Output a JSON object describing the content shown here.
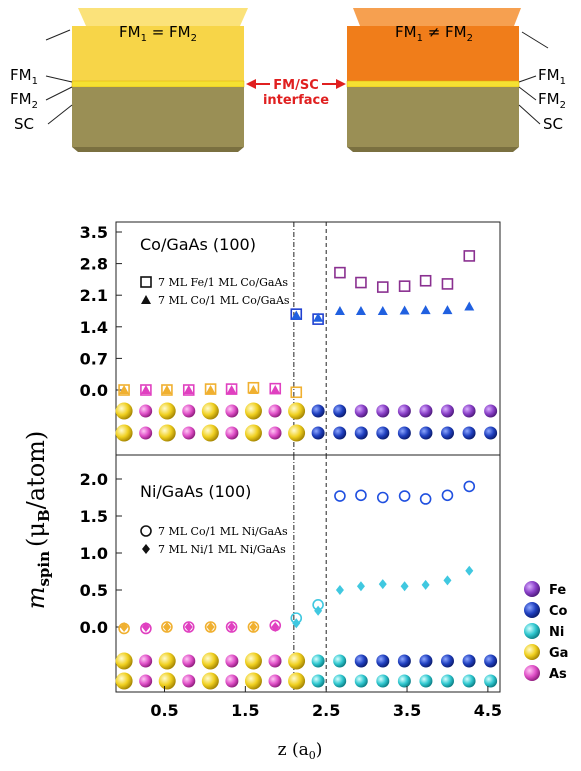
{
  "diagram": {
    "left_top_label": "FM",
    "left_top_sub1": "1",
    "left_top_eq": " = FM",
    "left_top_sub2": "2",
    "right_top_label": "FM",
    "right_top_sub1": "1",
    "right_top_eq": " ≠ FM",
    "right_top_sub2": "2",
    "layer_fm1": "FM",
    "layer_fm1_sub": "1",
    "layer_fm2": "FM",
    "layer_fm2_sub": "2",
    "layer_sc": "SC",
    "interface_line1": "FM/SC",
    "interface_line2": "interface",
    "colors": {
      "left_fm": "#f7d548",
      "right_fm": "#f07d1a",
      "fm2_layer": "#f5e132",
      "sc": "#9a8f55",
      "interface_label": "#e02020"
    }
  },
  "chart_data": [
    {
      "type": "scatter",
      "title": "Co/GaAs (100)",
      "ylim": [
        -0.95,
        3.5
      ],
      "yticks": [
        "3.5",
        "2.8",
        "2.1",
        "1.4",
        "0.7",
        "0.0"
      ],
      "ytick_values": [
        3.5,
        2.8,
        2.1,
        1.4,
        0.7,
        0.0
      ],
      "series": [
        {
          "name": "7 ML Fe/1 ML Co/GaAs",
          "marker": "square-open",
          "points": [
            {
              "x": 0.0,
              "y": 0.0,
              "color": "#f0b030"
            },
            {
              "x": 0.27,
              "y": 0.0,
              "color": "#e040c0"
            },
            {
              "x": 0.53,
              "y": 0.0,
              "color": "#f0b030"
            },
            {
              "x": 0.8,
              "y": 0.0,
              "color": "#e040c0"
            },
            {
              "x": 1.07,
              "y": 0.02,
              "color": "#f0b030"
            },
            {
              "x": 1.33,
              "y": 0.02,
              "color": "#e040c0"
            },
            {
              "x": 1.6,
              "y": 0.05,
              "color": "#f0b030"
            },
            {
              "x": 1.87,
              "y": 0.03,
              "color": "#e040c0"
            },
            {
              "x": 2.13,
              "y": -0.05,
              "color": "#f0b030"
            },
            {
              "x": 2.13,
              "y": 1.68,
              "color": "#2040d0"
            },
            {
              "x": 2.4,
              "y": 1.57,
              "color": "#2040d0"
            },
            {
              "x": 2.67,
              "y": 2.6,
              "color": "#8a3090"
            },
            {
              "x": 2.93,
              "y": 2.38,
              "color": "#8a3090"
            },
            {
              "x": 3.2,
              "y": 2.28,
              "color": "#8a3090"
            },
            {
              "x": 3.47,
              "y": 2.3,
              "color": "#8a3090"
            },
            {
              "x": 3.73,
              "y": 2.42,
              "color": "#8a3090"
            },
            {
              "x": 4.0,
              "y": 2.35,
              "color": "#8a3090"
            },
            {
              "x": 4.27,
              "y": 2.97,
              "color": "#8a3090"
            }
          ]
        },
        {
          "name": "7 ML Co/1 ML Co/GaAs",
          "marker": "triangle",
          "points": [
            {
              "x": 0.0,
              "y": 0.0,
              "color": "#f0b030"
            },
            {
              "x": 0.27,
              "y": 0.0,
              "color": "#e040c0"
            },
            {
              "x": 0.53,
              "y": 0.0,
              "color": "#f0b030"
            },
            {
              "x": 0.8,
              "y": 0.0,
              "color": "#e040c0"
            },
            {
              "x": 1.07,
              "y": 0.0,
              "color": "#f0b030"
            },
            {
              "x": 1.33,
              "y": 0.0,
              "color": "#e040c0"
            },
            {
              "x": 1.6,
              "y": 0.0,
              "color": "#f0b030"
            },
            {
              "x": 1.87,
              "y": 0.0,
              "color": "#e040c0"
            },
            {
              "x": 2.13,
              "y": 1.65,
              "color": "#2060e0"
            },
            {
              "x": 2.4,
              "y": 1.6,
              "color": "#2060e0"
            },
            {
              "x": 2.67,
              "y": 1.75,
              "color": "#2060e0"
            },
            {
              "x": 2.93,
              "y": 1.75,
              "color": "#2060e0"
            },
            {
              "x": 3.2,
              "y": 1.75,
              "color": "#2060e0"
            },
            {
              "x": 3.47,
              "y": 1.76,
              "color": "#2060e0"
            },
            {
              "x": 3.73,
              "y": 1.77,
              "color": "#2060e0"
            },
            {
              "x": 4.0,
              "y": 1.77,
              "color": "#2060e0"
            },
            {
              "x": 4.27,
              "y": 1.85,
              "color": "#2060e0"
            }
          ]
        }
      ]
    },
    {
      "type": "scatter",
      "title": "Ni/GaAs (100)",
      "ylim": [
        -0.95,
        2.0
      ],
      "yticks": [
        "2.0",
        "1.5",
        "1.0",
        "0.5",
        "0.0"
      ],
      "ytick_values": [
        2.0,
        1.5,
        1.0,
        0.5,
        0.0
      ],
      "xticks": [
        "0.5",
        "1.5",
        "2.5",
        "3.5",
        "4.5"
      ],
      "xtick_values": [
        0.5,
        1.5,
        2.5,
        3.5,
        4.5
      ],
      "xlim": [
        -0.1,
        4.65
      ],
      "series": [
        {
          "name": "7 ML Co/1 ML Ni/GaAs",
          "marker": "circle-open",
          "points": [
            {
              "x": 0.0,
              "y": -0.02,
              "color": "#f0b030"
            },
            {
              "x": 0.27,
              "y": -0.02,
              "color": "#e040c0"
            },
            {
              "x": 0.53,
              "y": 0.0,
              "color": "#f0b030"
            },
            {
              "x": 0.8,
              "y": 0.0,
              "color": "#e040c0"
            },
            {
              "x": 1.07,
              "y": 0.0,
              "color": "#f0b030"
            },
            {
              "x": 1.33,
              "y": 0.0,
              "color": "#e040c0"
            },
            {
              "x": 1.6,
              "y": 0.0,
              "color": "#f0b030"
            },
            {
              "x": 1.87,
              "y": 0.02,
              "color": "#e040c0"
            },
            {
              "x": 2.13,
              "y": 0.12,
              "color": "#40c8e0"
            },
            {
              "x": 2.4,
              "y": 0.3,
              "color": "#40c8e0"
            },
            {
              "x": 2.67,
              "y": 1.77,
              "color": "#2050e0"
            },
            {
              "x": 2.93,
              "y": 1.78,
              "color": "#2050e0"
            },
            {
              "x": 3.2,
              "y": 1.75,
              "color": "#2050e0"
            },
            {
              "x": 3.47,
              "y": 1.77,
              "color": "#2050e0"
            },
            {
              "x": 3.73,
              "y": 1.73,
              "color": "#2050e0"
            },
            {
              "x": 4.0,
              "y": 1.78,
              "color": "#2050e0"
            },
            {
              "x": 4.27,
              "y": 1.9,
              "color": "#2050e0"
            }
          ]
        },
        {
          "name": "7 ML Ni/1 ML Ni/GaAs",
          "marker": "diamond",
          "points": [
            {
              "x": 0.0,
              "y": 0.0,
              "color": "#f0b030"
            },
            {
              "x": 0.27,
              "y": 0.0,
              "color": "#e040c0"
            },
            {
              "x": 0.53,
              "y": 0.0,
              "color": "#f0b030"
            },
            {
              "x": 0.8,
              "y": 0.0,
              "color": "#e040c0"
            },
            {
              "x": 1.07,
              "y": 0.0,
              "color": "#f0b030"
            },
            {
              "x": 1.33,
              "y": 0.0,
              "color": "#e040c0"
            },
            {
              "x": 1.6,
              "y": 0.0,
              "color": "#f0b030"
            },
            {
              "x": 1.87,
              "y": 0.0,
              "color": "#e040c0"
            },
            {
              "x": 2.13,
              "y": 0.05,
              "color": "#40c8e0"
            },
            {
              "x": 2.4,
              "y": 0.22,
              "color": "#40c8e0"
            },
            {
              "x": 2.67,
              "y": 0.5,
              "color": "#40c8e0"
            },
            {
              "x": 2.93,
              "y": 0.55,
              "color": "#40c8e0"
            },
            {
              "x": 3.2,
              "y": 0.58,
              "color": "#40c8e0"
            },
            {
              "x": 3.47,
              "y": 0.55,
              "color": "#40c8e0"
            },
            {
              "x": 3.73,
              "y": 0.57,
              "color": "#40c8e0"
            },
            {
              "x": 4.0,
              "y": 0.63,
              "color": "#40c8e0"
            },
            {
              "x": 4.27,
              "y": 0.76,
              "color": "#40c8e0"
            }
          ]
        }
      ]
    }
  ],
  "axes": {
    "ylabel_m": "m",
    "ylabel_sub": "spin",
    "ylabel_unit_pre": "(μ",
    "ylabel_unit_sub": "B",
    "ylabel_unit_post": "/atom)",
    "xlabel_pre": "z (a",
    "xlabel_sub": "0",
    "xlabel_post": ")",
    "vline_x": [
      2.1,
      2.5
    ]
  },
  "atom_rows": {
    "panel1_row1": [
      "Ga",
      "As",
      "Ga",
      "As",
      "Ga",
      "As",
      "Ga",
      "As",
      "Ga",
      "Co",
      "Co",
      "Fe",
      "Fe",
      "Fe",
      "Fe",
      "Fe",
      "Fe",
      "Fe"
    ],
    "panel1_row2": [
      "Ga",
      "As",
      "Ga",
      "As",
      "Ga",
      "As",
      "Ga",
      "As",
      "Ga",
      "Co",
      "Co",
      "Co",
      "Co",
      "Co",
      "Co",
      "Co",
      "Co",
      "Co"
    ],
    "panel2_row1": [
      "Ga",
      "As",
      "Ga",
      "As",
      "Ga",
      "As",
      "Ga",
      "As",
      "Ga",
      "Ni",
      "Ni",
      "Co",
      "Co",
      "Co",
      "Co",
      "Co",
      "Co",
      "Co"
    ],
    "panel2_row2": [
      "Ga",
      "As",
      "Ga",
      "As",
      "Ga",
      "As",
      "Ga",
      "As",
      "Ga",
      "Ni",
      "Ni",
      "Ni",
      "Ni",
      "Ni",
      "Ni",
      "Ni",
      "Ni",
      "Ni"
    ]
  },
  "legend": [
    {
      "label": "Fe",
      "color": "#8a40c8"
    },
    {
      "label": "Co",
      "color": "#2040c0"
    },
    {
      "label": "Ni",
      "color": "#30c8d0"
    },
    {
      "label": "Ga",
      "color": "#f0d020"
    },
    {
      "label": "As",
      "color": "#e050c8"
    }
  ]
}
